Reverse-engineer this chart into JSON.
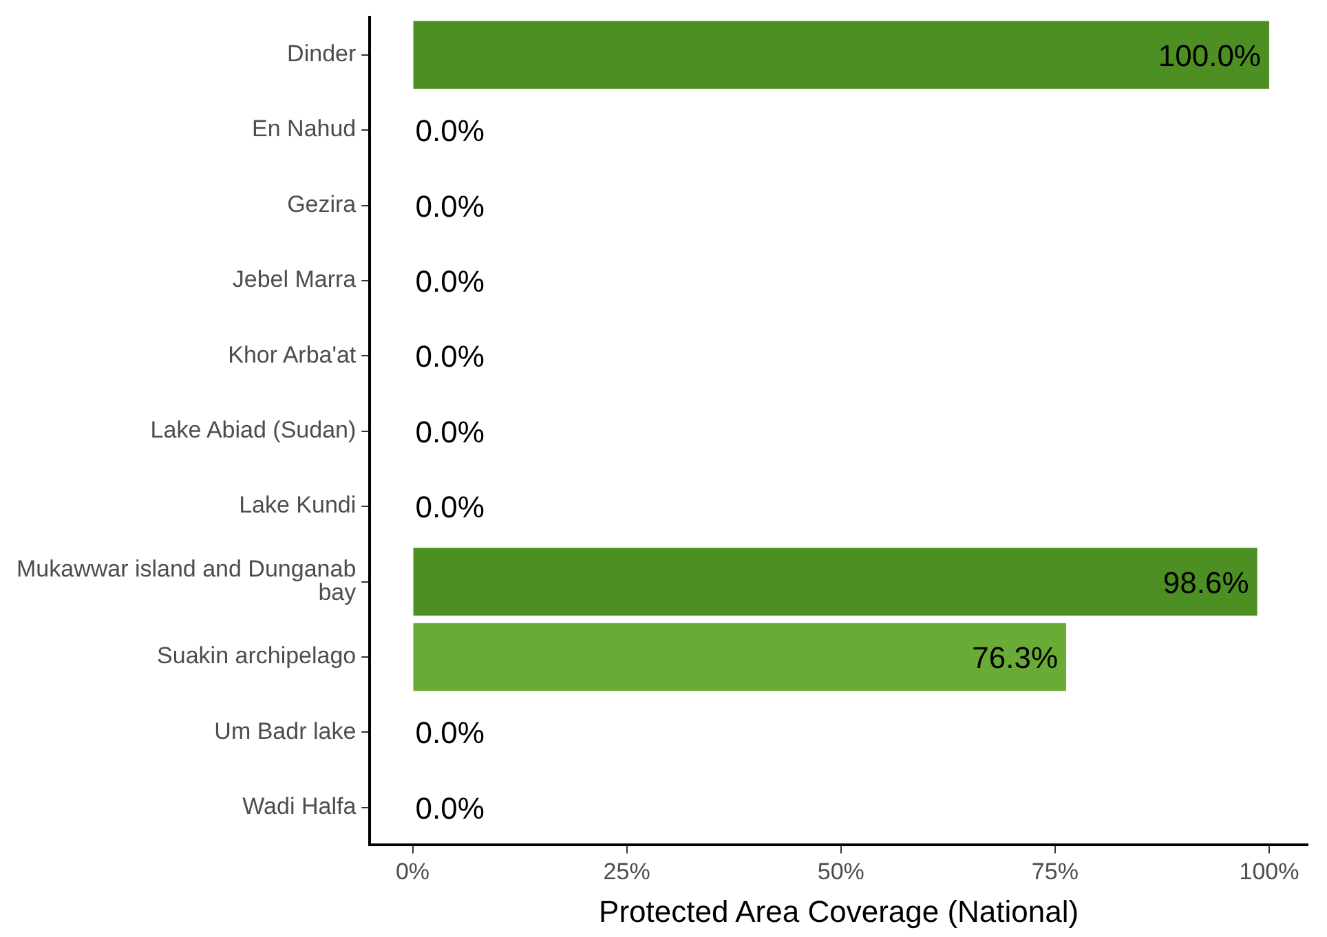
{
  "chart_data": {
    "type": "bar",
    "orientation": "horizontal",
    "xlabel": "Protected Area Coverage (National)",
    "categories": [
      "Dinder",
      "En Nahud",
      "Gezira",
      "Jebel Marra",
      "Khor Arba'at",
      "Lake Abiad (Sudan)",
      "Lake Kundi",
      "Mukawwar island and Dunganab bay",
      "Suakin archipelago",
      "Um Badr lake",
      "Wadi Halfa"
    ],
    "values": [
      100,
      0,
      0,
      0,
      0,
      0,
      0,
      98.6,
      76.3,
      0,
      0
    ],
    "colors": [
      "#4d8f22",
      "#4d8f22",
      "#4d8f22",
      "#4d8f22",
      "#4d8f22",
      "#4d8f22",
      "#4d8f22",
      "#4d8f22",
      "#6aab36",
      "#4d8f22",
      "#4d8f22"
    ],
    "value_labels": [
      "100.0%",
      "0.0%",
      "0.0%",
      "0.0%",
      "0.0%",
      "0.0%",
      "0.0%",
      "98.6%",
      "76.3%",
      "0.0%",
      "0.0%"
    ],
    "xlim": [
      -5,
      104.5
    ],
    "xticks": [
      {
        "value": 0,
        "label": "0%"
      },
      {
        "value": 25,
        "label": "25%"
      },
      {
        "value": 50,
        "label": "50%"
      },
      {
        "value": 75,
        "label": "75%"
      },
      {
        "value": 100,
        "label": "100%"
      }
    ],
    "grid": false,
    "legend": false
  }
}
